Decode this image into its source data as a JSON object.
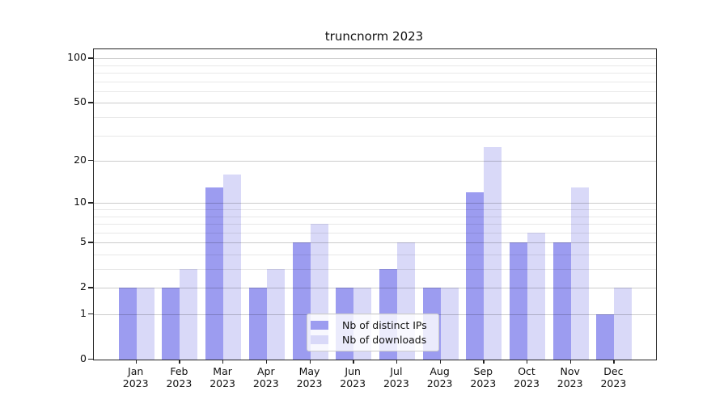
{
  "title": "truncnorm 2023",
  "colors": {
    "ips_bar": "#9c9cf0",
    "downloads_bar": "#d9d9f8",
    "grid_major": "#cccccc",
    "grid_minor": "#e8e8e8",
    "axis_frame": "#222222",
    "background": "#ffffff"
  },
  "legend": {
    "items": [
      {
        "label": "Nb of distinct IPs",
        "series": "ips"
      },
      {
        "label": "Nb of downloads",
        "series": "downloads"
      }
    ],
    "position": "lower center"
  },
  "chart_data": {
    "type": "bar",
    "title": "truncnorm 2023",
    "categories": [
      "Jan 2023",
      "Feb 2023",
      "Mar 2023",
      "Apr 2023",
      "May 2023",
      "Jun 2023",
      "Jul 2023",
      "Aug 2023",
      "Sep 2023",
      "Oct 2023",
      "Nov 2023",
      "Dec 2023"
    ],
    "x_tick_months": [
      "Jan",
      "Feb",
      "Mar",
      "Apr",
      "May",
      "Jun",
      "Jul",
      "Aug",
      "Sep",
      "Oct",
      "Nov",
      "Dec"
    ],
    "x_tick_year": "2023",
    "series": [
      {
        "name": "Nb of distinct IPs",
        "color": "#9c9cf0",
        "values": [
          2,
          2,
          13,
          2,
          5,
          2,
          3,
          2,
          12,
          5,
          5,
          1
        ]
      },
      {
        "name": "Nb of downloads",
        "color": "#d9d9f8",
        "values": [
          2,
          3,
          16,
          3,
          7,
          2,
          5,
          2,
          25,
          6,
          13,
          2
        ]
      }
    ],
    "xlabel": "",
    "ylabel": "",
    "yscale": "log1p",
    "y_major_ticks": [
      0,
      1,
      2,
      5,
      10,
      20,
      50,
      100
    ],
    "y_minor_ticks": [
      3,
      4,
      6,
      7,
      8,
      9,
      30,
      40,
      60,
      70,
      80,
      90
    ],
    "ylim": [
      0,
      115
    ],
    "grid": true,
    "legend_position": "lower center"
  }
}
